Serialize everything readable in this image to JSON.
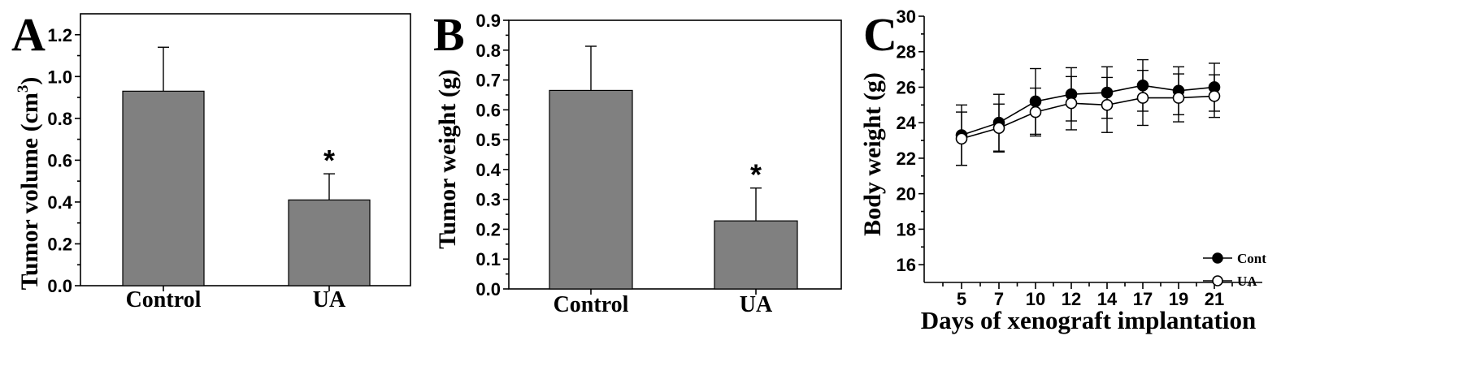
{
  "chart_data": [
    {
      "panel": "A",
      "type": "bar",
      "categories": [
        "Control",
        "UA"
      ],
      "values": [
        0.93,
        0.41
      ],
      "errors": [
        0.21,
        0.125
      ],
      "significance": [
        "",
        "*"
      ],
      "ylabel": "Tumor volume (cm3)",
      "ylabel_main": "Tumor volume (cm",
      "ylabel_sup": "3",
      "ylabel_end": ")",
      "ylim": [
        0.0,
        1.3
      ],
      "yticks": [
        "0.0",
        "0.2",
        "0.4",
        "0.6",
        "0.8",
        "1.0",
        "1.2"
      ]
    },
    {
      "panel": "B",
      "type": "bar",
      "categories": [
        "Control",
        "UA"
      ],
      "values": [
        0.665,
        0.228
      ],
      "errors": [
        0.148,
        0.11
      ],
      "significance": [
        "",
        "*"
      ],
      "ylabel": "Tumor weight (g)",
      "ylim": [
        0.0,
        0.9
      ],
      "yticks": [
        "0.0",
        "0.1",
        "0.2",
        "0.3",
        "0.4",
        "0.5",
        "0.6",
        "0.7",
        "0.8",
        "0.9"
      ]
    },
    {
      "panel": "C",
      "type": "line",
      "x": [
        "5",
        "7",
        "10",
        "12",
        "14",
        "17",
        "19",
        "21"
      ],
      "series": [
        {
          "name": "Cont",
          "marker": "filled-circle",
          "values": [
            23.3,
            24.0,
            25.2,
            25.6,
            25.7,
            26.1,
            25.8,
            26.0
          ],
          "errors": [
            1.7,
            1.6,
            1.85,
            1.5,
            1.45,
            1.45,
            1.35,
            1.35
          ]
        },
        {
          "name": "UA",
          "marker": "open-circle",
          "values": [
            23.1,
            23.7,
            24.6,
            25.1,
            25.0,
            25.4,
            25.4,
            25.5
          ],
          "errors": [
            1.5,
            1.35,
            1.35,
            1.5,
            1.55,
            1.55,
            1.35,
            1.2
          ]
        }
      ],
      "xlabel": "Days of xenograft implantation",
      "ylabel": "Body weight (g)",
      "ylim": [
        15,
        30
      ],
      "yticks": [
        "16",
        "18",
        "20",
        "22",
        "24",
        "26",
        "28",
        "30"
      ],
      "legend": "lower-right"
    }
  ]
}
